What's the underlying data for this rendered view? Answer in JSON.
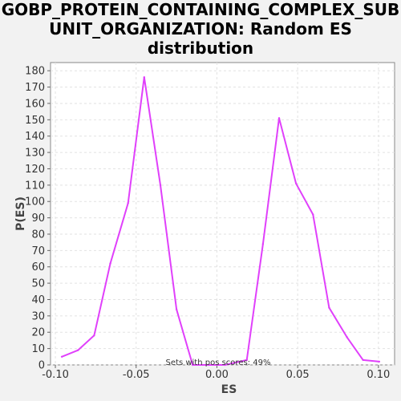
{
  "chart_data": {
    "type": "line",
    "title_lines": [
      "GOBP_PROTEIN_CONTAINING_COMPLEX_SUB",
      "UNIT_ORGANIZATION: Random ES",
      "distribution"
    ],
    "xlabel": "ES",
    "ylabel": "P(ES)",
    "xlim": [
      -0.103,
      0.11
    ],
    "ylim": [
      0,
      185
    ],
    "x_ticks": [
      -0.1,
      -0.05,
      0.0,
      0.05,
      0.1
    ],
    "x_tick_labels": [
      "-0.10",
      "-0.05",
      "0.00",
      "0.05",
      "0.10"
    ],
    "y_ticks": [
      0,
      10,
      20,
      30,
      40,
      50,
      60,
      70,
      80,
      90,
      100,
      110,
      120,
      130,
      140,
      150,
      160,
      170,
      180
    ],
    "y_tick_labels": [
      "0",
      "10",
      "20",
      "30",
      "40",
      "50",
      "60",
      "70",
      "80",
      "90",
      "100",
      "110",
      "120",
      "130",
      "140",
      "150",
      "160",
      "170",
      "180"
    ],
    "grid": true,
    "annotation": "Sets with pos scores: 49%",
    "series": [
      {
        "color": "#e040fb",
        "x": [
          -0.096,
          -0.086,
          -0.076,
          -0.066,
          -0.055,
          -0.045,
          -0.035,
          -0.025,
          -0.015,
          -0.005,
          0.005,
          0.0185,
          0.0285,
          0.0385,
          0.049,
          0.0595,
          0.0695,
          0.0805,
          0.0905,
          0.1005
        ],
        "y": [
          5,
          9,
          18,
          62,
          99,
          176,
          110,
          34,
          0,
          0,
          0,
          3,
          74,
          151,
          111,
          92,
          35,
          17,
          3,
          2
        ]
      }
    ]
  }
}
